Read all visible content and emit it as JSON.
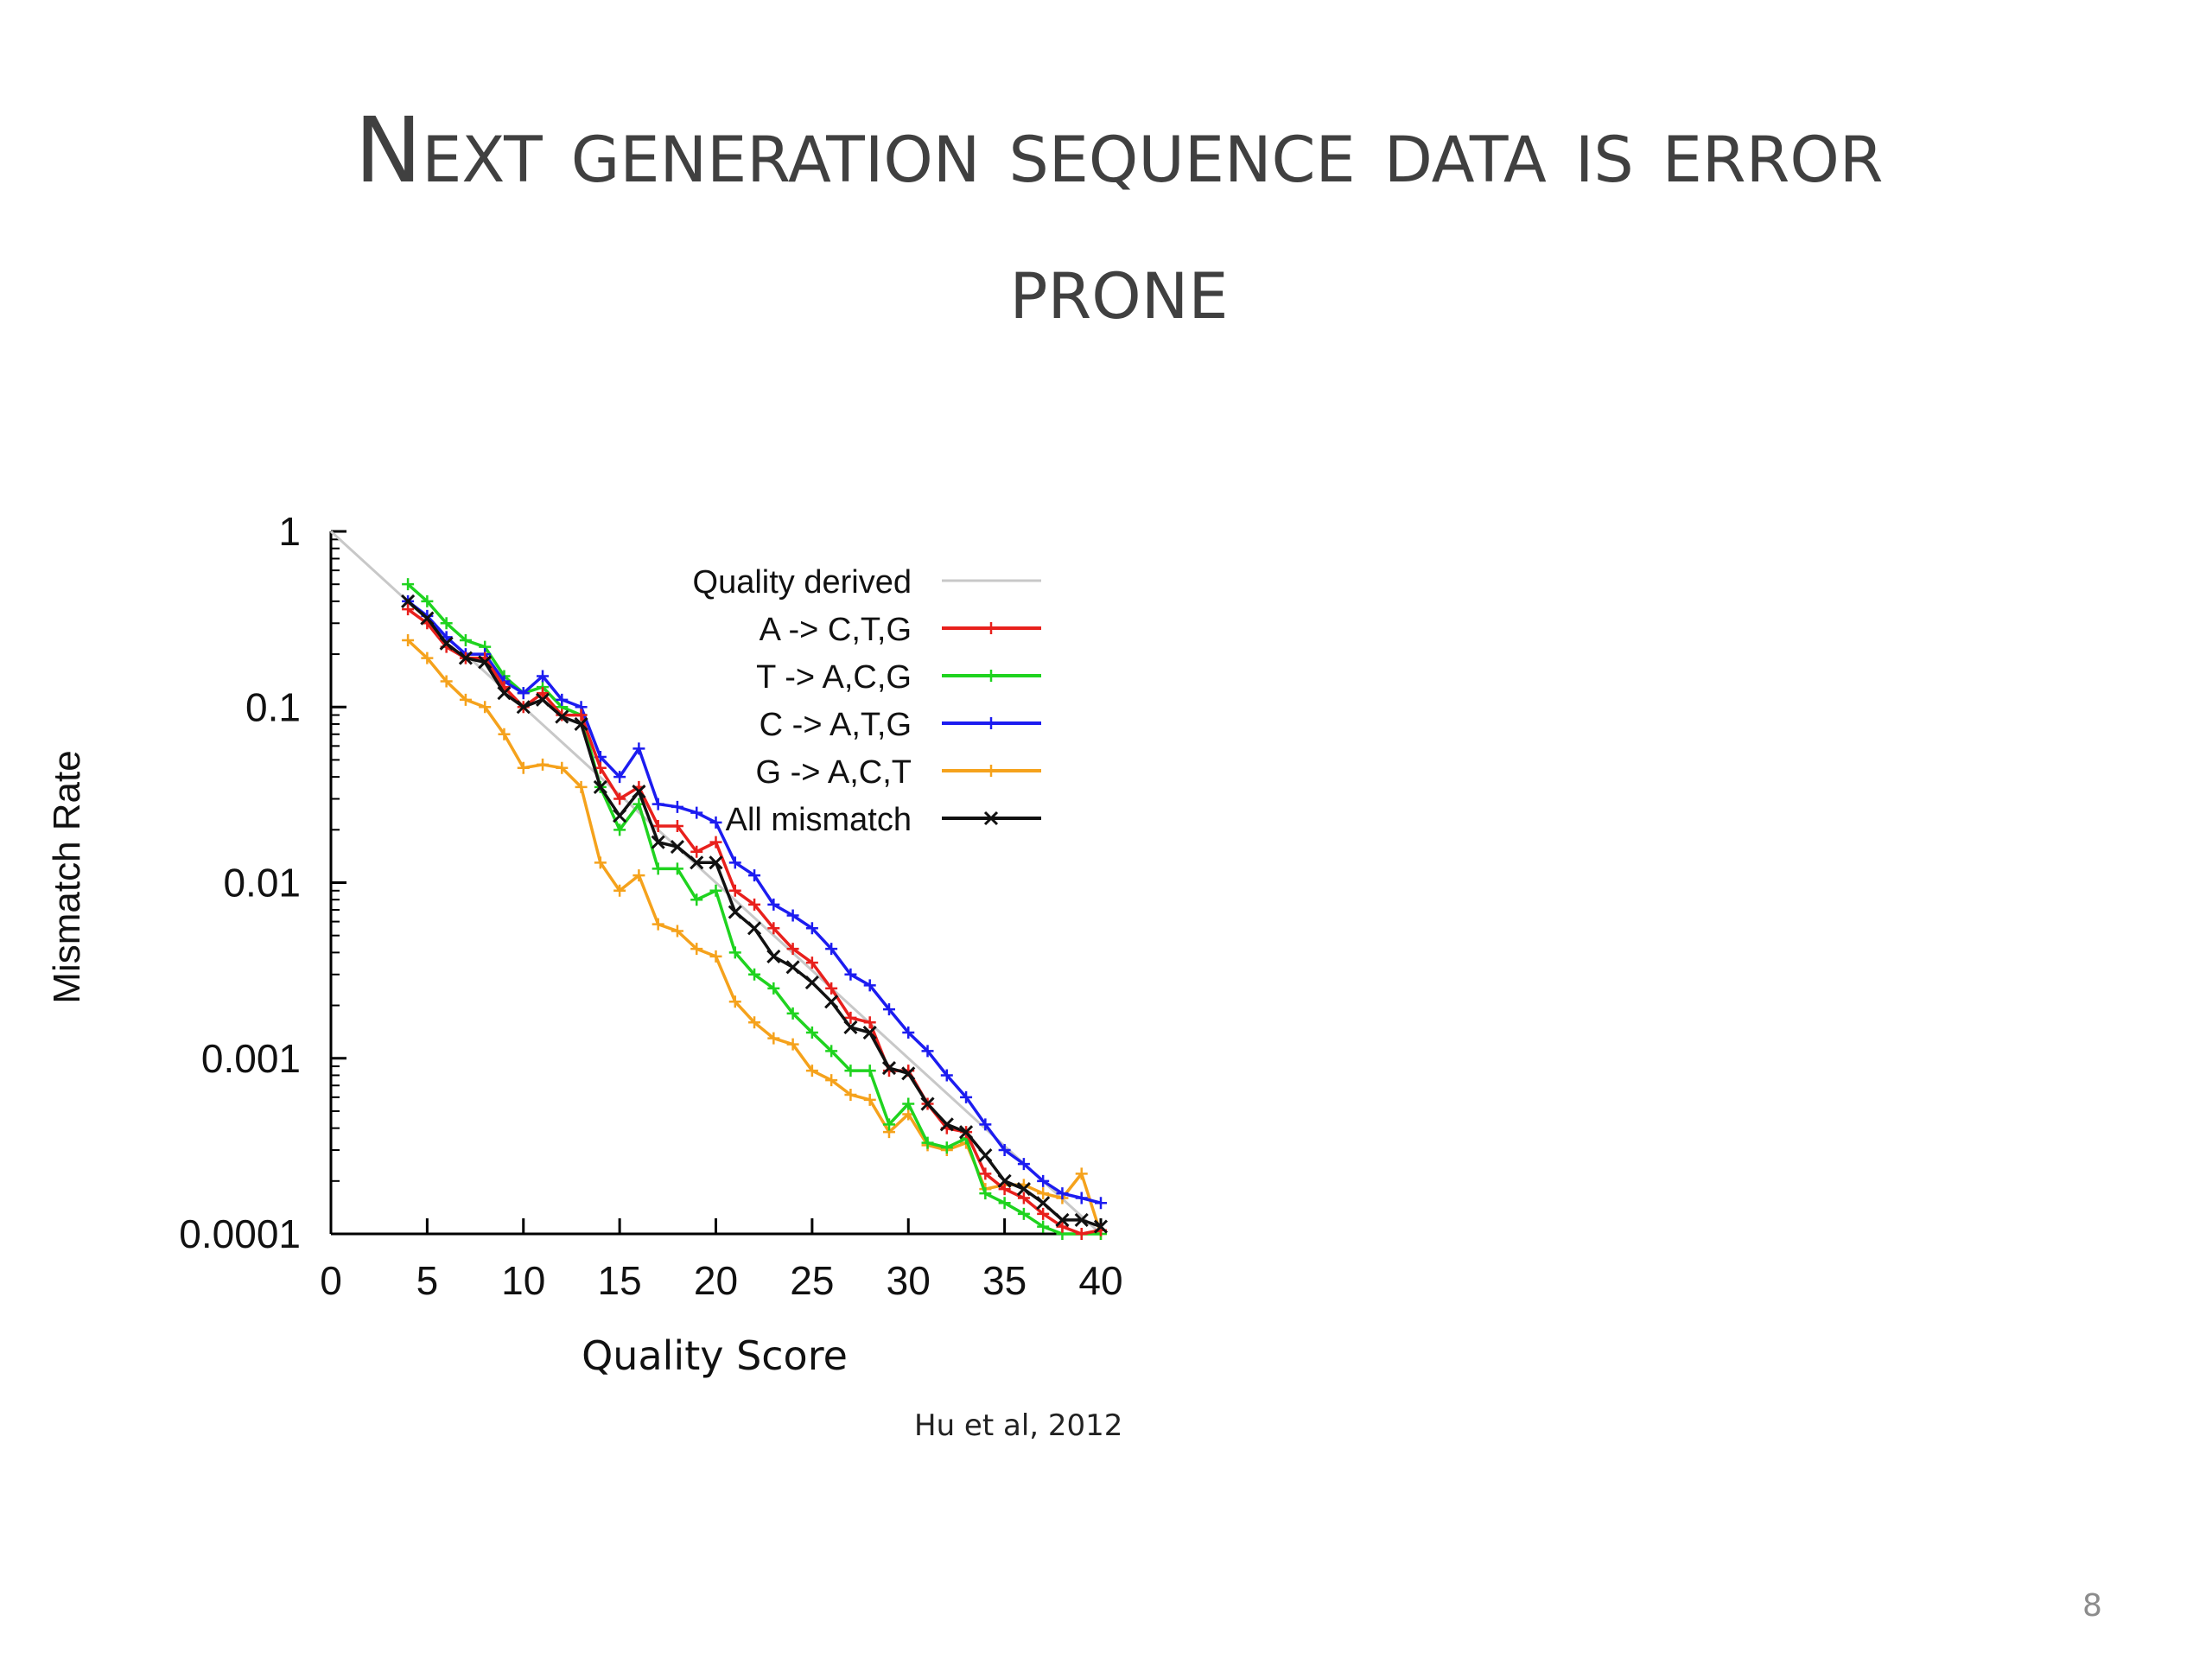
{
  "slide": {
    "title_line1": "Next generation sequence data is error",
    "title_line2": "prone",
    "citation": "Hu et al, 2012",
    "page_number": "8"
  },
  "chart_data": {
    "type": "line",
    "xlabel": "Quality Score",
    "ylabel": "Mismatch Rate",
    "xlim": [
      0,
      40
    ],
    "ylim": [
      0.0001,
      1
    ],
    "yscale": "log",
    "x_ticks": [
      0,
      5,
      10,
      15,
      20,
      25,
      30,
      35,
      40
    ],
    "y_ticks": [
      "1",
      "0.1",
      "0.01",
      "0.001",
      "0.0001"
    ],
    "y_tick_values": [
      1,
      0.1,
      0.01,
      0.001,
      0.0001
    ],
    "grid": false,
    "legend_position": "top-right",
    "x": [
      4,
      5,
      6,
      7,
      8,
      9,
      10,
      11,
      12,
      13,
      14,
      15,
      16,
      17,
      18,
      19,
      20,
      21,
      22,
      23,
      24,
      25,
      26,
      27,
      28,
      29,
      30,
      31,
      32,
      33,
      34,
      35,
      36,
      37,
      38,
      39,
      40
    ],
    "reference": {
      "name": "Quality derived",
      "color": "#c8c8c8"
    },
    "series": [
      {
        "name": "A -> C,T,G",
        "color": "#e8201c",
        "marker": "+",
        "values": [
          0.36,
          0.3,
          0.22,
          0.19,
          0.19,
          0.13,
          0.1,
          0.12,
          0.09,
          0.09,
          0.045,
          0.03,
          0.035,
          0.021,
          0.021,
          0.015,
          0.017,
          0.009,
          0.0075,
          0.0055,
          0.0042,
          0.0035,
          0.0025,
          0.0017,
          0.0016,
          0.00085,
          0.00085,
          0.00055,
          0.0004,
          0.00038,
          0.00022,
          0.00018,
          0.00016,
          0.00013,
          0.00011,
          0.0001,
          0.000105
        ]
      },
      {
        "name": "T -> A,C,G",
        "color": "#1fd31f",
        "marker": "+",
        "values": [
          0.5,
          0.4,
          0.3,
          0.24,
          0.22,
          0.15,
          0.12,
          0.13,
          0.1,
          0.09,
          0.035,
          0.02,
          0.028,
          0.012,
          0.012,
          0.008,
          0.009,
          0.004,
          0.003,
          0.0025,
          0.0018,
          0.0014,
          0.0011,
          0.00085,
          0.00085,
          0.00042,
          0.00055,
          0.00033,
          0.00031,
          0.00035,
          0.00017,
          0.00015,
          0.00013,
          0.00011,
          0.0001,
          0.0001,
          0.0001
        ]
      },
      {
        "name": "C -> A,T,G",
        "color": "#1c1cf0",
        "marker": "+",
        "values": [
          0.4,
          0.33,
          0.25,
          0.2,
          0.2,
          0.14,
          0.12,
          0.15,
          0.11,
          0.1,
          0.052,
          0.04,
          0.058,
          0.028,
          0.027,
          0.025,
          0.022,
          0.013,
          0.011,
          0.0075,
          0.0065,
          0.0055,
          0.0042,
          0.003,
          0.0026,
          0.0019,
          0.0014,
          0.0011,
          0.0008,
          0.0006,
          0.00042,
          0.0003,
          0.00025,
          0.0002,
          0.00017,
          0.00016,
          0.00015
        ]
      },
      {
        "name": "G -> A,C,T",
        "color": "#f5a21c",
        "marker": "+",
        "values": [
          0.24,
          0.19,
          0.14,
          0.11,
          0.1,
          0.07,
          0.045,
          0.047,
          0.045,
          0.035,
          0.013,
          0.009,
          0.011,
          0.0058,
          0.0053,
          0.0042,
          0.0038,
          0.0021,
          0.0016,
          0.0013,
          0.0012,
          0.00085,
          0.00075,
          0.00062,
          0.00058,
          0.00038,
          0.00048,
          0.00032,
          0.0003,
          0.00033,
          0.00018,
          0.00019,
          0.00019,
          0.00017,
          0.00016,
          0.00022,
          0.0001
        ]
      },
      {
        "name": "All mismatch",
        "color": "#111111",
        "marker": "x",
        "values": [
          0.4,
          0.32,
          0.23,
          0.19,
          0.18,
          0.12,
          0.1,
          0.11,
          0.088,
          0.08,
          0.035,
          0.024,
          0.033,
          0.017,
          0.016,
          0.013,
          0.013,
          0.0068,
          0.0055,
          0.0038,
          0.0033,
          0.0027,
          0.0021,
          0.0015,
          0.0014,
          0.00088,
          0.00082,
          0.00055,
          0.00042,
          0.00038,
          0.00028,
          0.0002,
          0.00018,
          0.00015,
          0.00012,
          0.00012,
          0.00011
        ]
      }
    ]
  }
}
